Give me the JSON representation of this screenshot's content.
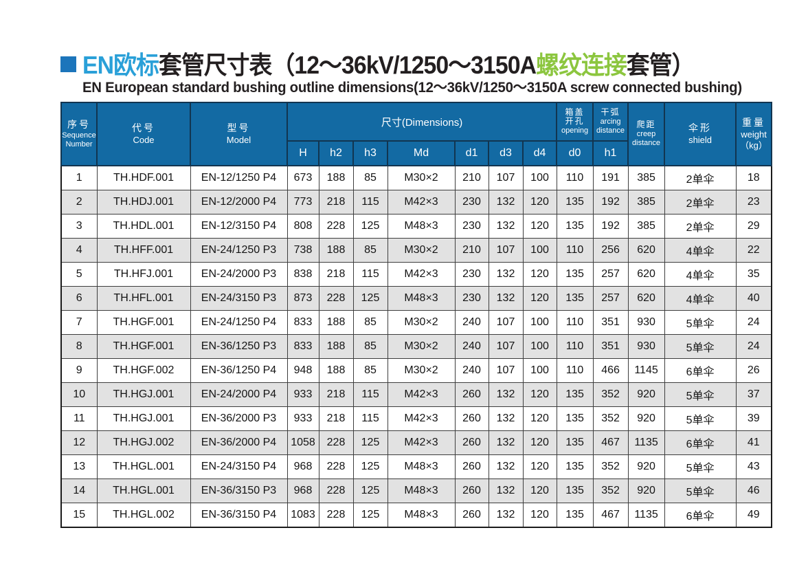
{
  "title": {
    "part_blue": "EN欧标",
    "part_black1": "套管尺寸表（12～36kV/1250～3150A",
    "part_green": "螺纹连接",
    "part_black2": "套管）",
    "subtitle": "EN European standard bushing outline dimensions(12～36kV/1250～3150A screw connected bushing)"
  },
  "colors": {
    "header_blue": "#136aa3",
    "title_blue": "#2aa0d8",
    "title_green": "#8cc63f",
    "bullet_blue": "#1c75bb",
    "row_alt_gray": "#e2e2e2"
  },
  "table": {
    "headers": {
      "seq_cn": "序号",
      "seq_en1": "Sequence",
      "seq_en2": "Number",
      "code_cn": "代号",
      "code_en": "Code",
      "model_cn": "型号",
      "model_en": "Model",
      "dimensions": "尺寸(Dimensions)",
      "dim_cols": [
        "H",
        "h2",
        "h3",
        "Md",
        "d1",
        "d3",
        "d4"
      ],
      "opening_cn1": "箱盖",
      "opening_cn2": "开孔",
      "opening_en": "opening",
      "opening_col": "d0",
      "arcing_cn": "干弧",
      "arcing_en1": "arcing",
      "arcing_en2": "distance",
      "arcing_col": "h1",
      "creep_cn": "爬距",
      "creep_en1": "creep",
      "creep_en2": "distance",
      "shield_cn": "伞形",
      "shield_en": "shield",
      "weight_cn": "重量",
      "weight_en": "weight",
      "weight_unit": "（kg）"
    },
    "rows": [
      [
        "1",
        "TH.HDF.001",
        "EN-12/1250 P4",
        "673",
        "188",
        "85",
        "M30×2",
        "210",
        "107",
        "100",
        "110",
        "191",
        "385",
        "2单伞",
        "18"
      ],
      [
        "2",
        "TH.HDJ.001",
        "EN-12/2000 P4",
        "773",
        "218",
        "115",
        "M42×3",
        "230",
        "132",
        "120",
        "135",
        "192",
        "385",
        "2单伞",
        "23"
      ],
      [
        "3",
        "TH.HDL.001",
        "EN-12/3150 P4",
        "808",
        "228",
        "125",
        "M48×3",
        "230",
        "132",
        "120",
        "135",
        "192",
        "385",
        "2单伞",
        "29"
      ],
      [
        "4",
        "TH.HFF.001",
        "EN-24/1250 P3",
        "738",
        "188",
        "85",
        "M30×2",
        "210",
        "107",
        "100",
        "110",
        "256",
        "620",
        "4单伞",
        "22"
      ],
      [
        "5",
        "TH.HFJ.001",
        "EN-24/2000 P3",
        "838",
        "218",
        "115",
        "M42×3",
        "230",
        "132",
        "120",
        "135",
        "257",
        "620",
        "4单伞",
        "35"
      ],
      [
        "6",
        "TH.HFL.001",
        "EN-24/3150 P3",
        "873",
        "228",
        "125",
        "M48×3",
        "230",
        "132",
        "120",
        "135",
        "257",
        "620",
        "4单伞",
        "40"
      ],
      [
        "7",
        "TH.HGF.001",
        "EN-24/1250 P4",
        "833",
        "188",
        "85",
        "M30×2",
        "240",
        "107",
        "100",
        "110",
        "351",
        "930",
        "5单伞",
        "24"
      ],
      [
        "8",
        "TH.HGF.001",
        "EN-36/1250 P3",
        "833",
        "188",
        "85",
        "M30×2",
        "240",
        "107",
        "100",
        "110",
        "351",
        "930",
        "5单伞",
        "24"
      ],
      [
        "9",
        "TH.HGF.002",
        "EN-36/1250 P4",
        "948",
        "188",
        "85",
        "M30×2",
        "240",
        "107",
        "100",
        "110",
        "466",
        "1145",
        "6单伞",
        "26"
      ],
      [
        "10",
        "TH.HGJ.001",
        "EN-24/2000 P4",
        "933",
        "218",
        "115",
        "M42×3",
        "260",
        "132",
        "120",
        "135",
        "352",
        "920",
        "5单伞",
        "37"
      ],
      [
        "11",
        "TH.HGJ.001",
        "EN-36/2000 P3",
        "933",
        "218",
        "115",
        "M42×3",
        "260",
        "132",
        "120",
        "135",
        "352",
        "920",
        "5单伞",
        "39"
      ],
      [
        "12",
        "TH.HGJ.002",
        "EN-36/2000 P4",
        "1058",
        "228",
        "125",
        "M42×3",
        "260",
        "132",
        "120",
        "135",
        "467",
        "1135",
        "6单伞",
        "41"
      ],
      [
        "13",
        "TH.HGL.001",
        "EN-24/3150 P4",
        "968",
        "228",
        "125",
        "M48×3",
        "260",
        "132",
        "120",
        "135",
        "352",
        "920",
        "5单伞",
        "43"
      ],
      [
        "14",
        "TH.HGL.001",
        "EN-36/3150 P3",
        "968",
        "228",
        "125",
        "M48×3",
        "260",
        "132",
        "120",
        "135",
        "352",
        "920",
        "5单伞",
        "46"
      ],
      [
        "15",
        "TH.HGL.002",
        "EN-36/3150 P4",
        "1083",
        "228",
        "125",
        "M48×3",
        "260",
        "132",
        "120",
        "135",
        "467",
        "1135",
        "6单伞",
        "49"
      ]
    ]
  }
}
